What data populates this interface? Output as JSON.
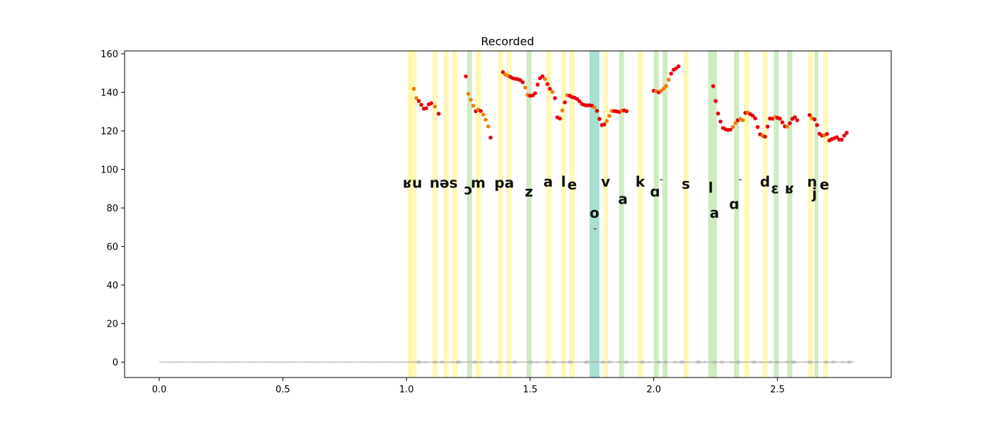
{
  "chart_data": {
    "type": "scatter",
    "title": "Recorded",
    "xlabel": "",
    "ylabel": "",
    "xlim": [
      -0.14,
      2.96
    ],
    "ylim": [
      -8,
      161.5
    ],
    "grid": false,
    "x_ticks": [
      0.0,
      0.5,
      1.0,
      1.5,
      2.0,
      2.5
    ],
    "x_tick_labels": [
      "0.0",
      "0.5",
      "1.0",
      "1.5",
      "2.0",
      "2.5"
    ],
    "y_ticks": [
      0,
      20,
      40,
      60,
      80,
      100,
      120,
      140,
      160
    ],
    "y_tick_labels": [
      "0",
      "20",
      "40",
      "60",
      "80",
      "100",
      "120",
      "140",
      "160"
    ],
    "colors": {
      "pitch_red": "#e8000b",
      "pitch_orange": "#f07d00",
      "band_yellow": "#fff27a",
      "band_green": "#b9e3a8",
      "band_teal": "#3fb69f",
      "waveform": "#b0b0b0",
      "axis": "#000000"
    },
    "series": [
      {
        "points": [
          [
            1.03,
            141.8,
            "o"
          ],
          [
            1.04,
            137,
            "o"
          ],
          [
            1.05,
            135.5,
            "r"
          ],
          [
            1.06,
            133.5,
            "r"
          ],
          [
            1.07,
            131.5,
            "r"
          ],
          [
            1.08,
            131.8,
            "r"
          ],
          [
            1.09,
            133.8,
            "r"
          ],
          [
            1.1,
            134.3,
            "r"
          ],
          [
            1.115,
            132.6,
            "o"
          ],
          [
            1.13,
            128.9,
            "r"
          ],
          [
            1.24,
            148.3,
            "r"
          ],
          [
            1.25,
            139.2,
            "o"
          ],
          [
            1.26,
            136.2,
            "o"
          ],
          [
            1.27,
            133.1,
            "o"
          ],
          [
            1.28,
            130.2,
            "r"
          ],
          [
            1.29,
            131,
            "o"
          ],
          [
            1.3,
            130.3,
            "r"
          ],
          [
            1.31,
            128.4,
            "o"
          ],
          [
            1.32,
            125.8,
            "o"
          ],
          [
            1.33,
            122.3,
            "o"
          ],
          [
            1.34,
            116.5,
            "r"
          ],
          [
            1.39,
            150.5,
            "r"
          ],
          [
            1.4,
            149.2,
            "o"
          ],
          [
            1.41,
            148.6,
            "o"
          ],
          [
            1.42,
            148,
            "r"
          ],
          [
            1.43,
            147.3,
            "r"
          ],
          [
            1.44,
            147,
            "r"
          ],
          [
            1.45,
            146.8,
            "r"
          ],
          [
            1.46,
            146.3,
            "r"
          ],
          [
            1.47,
            145.2,
            "r"
          ],
          [
            1.48,
            142.5,
            "o"
          ],
          [
            1.49,
            138.7,
            "o"
          ],
          [
            1.5,
            138.2,
            "r"
          ],
          [
            1.51,
            138.4,
            "r"
          ],
          [
            1.52,
            139.5,
            "r"
          ],
          [
            1.53,
            144,
            "r"
          ],
          [
            1.54,
            147.3,
            "r"
          ],
          [
            1.55,
            148.3,
            "r"
          ],
          [
            1.56,
            146.9,
            "o"
          ],
          [
            1.57,
            144.3,
            "r"
          ],
          [
            1.58,
            141.8,
            "r"
          ],
          [
            1.59,
            140.2,
            "o"
          ],
          [
            1.6,
            137,
            "r"
          ],
          [
            1.61,
            127,
            "r"
          ],
          [
            1.62,
            126.4,
            "r"
          ],
          [
            1.63,
            130.6,
            "o"
          ],
          [
            1.64,
            134.8,
            "r"
          ],
          [
            1.65,
            138.5,
            "o"
          ],
          [
            1.66,
            138.2,
            "r"
          ],
          [
            1.67,
            137.5,
            "r"
          ],
          [
            1.68,
            137.2,
            "r"
          ],
          [
            1.69,
            136.5,
            "r"
          ],
          [
            1.7,
            135.3,
            "r"
          ],
          [
            1.71,
            133.9,
            "r"
          ],
          [
            1.72,
            133.4,
            "r"
          ],
          [
            1.73,
            133.2,
            "r"
          ],
          [
            1.74,
            133.3,
            "r"
          ],
          [
            1.75,
            133.1,
            "r"
          ],
          [
            1.76,
            132.2,
            "o"
          ],
          [
            1.77,
            130.4,
            "r"
          ],
          [
            1.78,
            126.2,
            "r"
          ],
          [
            1.79,
            123,
            "r"
          ],
          [
            1.8,
            123.3,
            "r"
          ],
          [
            1.81,
            125.1,
            "o"
          ],
          [
            1.82,
            127.8,
            "o"
          ],
          [
            1.83,
            130.3,
            "o"
          ],
          [
            1.84,
            130.3,
            "r"
          ],
          [
            1.85,
            130.1,
            "r"
          ],
          [
            1.86,
            129.8,
            "r"
          ],
          [
            1.87,
            130.5,
            "o"
          ],
          [
            1.88,
            130.6,
            "r"
          ],
          [
            1.89,
            130.2,
            "r"
          ],
          [
            2.0,
            140.8,
            "r"
          ],
          [
            2.01,
            140.5,
            "o"
          ],
          [
            2.02,
            140,
            "r"
          ],
          [
            2.03,
            140.8,
            "o"
          ],
          [
            2.04,
            141.9,
            "o"
          ],
          [
            2.05,
            143.3,
            "o"
          ],
          [
            2.06,
            146.5,
            "o"
          ],
          [
            2.07,
            149.7,
            "r"
          ],
          [
            2.08,
            151.7,
            "r"
          ],
          [
            2.09,
            152.4,
            "r"
          ],
          [
            2.1,
            153.5,
            "r"
          ],
          [
            2.24,
            143.2,
            "r"
          ],
          [
            2.25,
            135.5,
            "r"
          ],
          [
            2.26,
            129,
            "r"
          ],
          [
            2.27,
            124.8,
            "r"
          ],
          [
            2.28,
            121.5,
            "r"
          ],
          [
            2.29,
            120.8,
            "r"
          ],
          [
            2.3,
            120.5,
            "r"
          ],
          [
            2.31,
            120.6,
            "r"
          ],
          [
            2.32,
            122,
            "o"
          ],
          [
            2.33,
            124,
            "o"
          ],
          [
            2.34,
            125.5,
            "r"
          ],
          [
            2.35,
            126.2,
            "o"
          ],
          [
            2.36,
            125.5,
            "o"
          ],
          [
            2.37,
            129.3,
            "r"
          ],
          [
            2.38,
            129.5,
            "o"
          ],
          [
            2.39,
            128.7,
            "r"
          ],
          [
            2.4,
            127.9,
            "r"
          ],
          [
            2.41,
            126.5,
            "r"
          ],
          [
            2.42,
            122,
            "r"
          ],
          [
            2.43,
            118.2,
            "r"
          ],
          [
            2.44,
            117.4,
            "o"
          ],
          [
            2.45,
            117,
            "r"
          ],
          [
            2.46,
            122.2,
            "r"
          ],
          [
            2.47,
            126.4,
            "r"
          ],
          [
            2.48,
            126.3,
            "r"
          ],
          [
            2.49,
            127.2,
            "o"
          ],
          [
            2.5,
            126.8,
            "r"
          ],
          [
            2.51,
            126.3,
            "r"
          ],
          [
            2.52,
            124.4,
            "r"
          ],
          [
            2.53,
            122.3,
            "r"
          ],
          [
            2.54,
            122.2,
            "o"
          ],
          [
            2.55,
            124,
            "r"
          ],
          [
            2.56,
            126.2,
            "r"
          ],
          [
            2.57,
            127.1,
            "r"
          ],
          [
            2.58,
            125.5,
            "r"
          ],
          [
            2.63,
            128.2,
            "r"
          ],
          [
            2.64,
            126.5,
            "o"
          ],
          [
            2.65,
            126,
            "r"
          ],
          [
            2.66,
            123,
            "r"
          ],
          [
            2.67,
            118.5,
            "r"
          ],
          [
            2.68,
            117.5,
            "r"
          ],
          [
            2.69,
            117.7,
            "o"
          ],
          [
            2.7,
            118.4,
            "r"
          ],
          [
            2.71,
            115,
            "r"
          ],
          [
            2.72,
            115.7,
            "r"
          ],
          [
            2.73,
            116.2,
            "r"
          ],
          [
            2.74,
            116.7,
            "r"
          ],
          [
            2.75,
            115.5,
            "r"
          ],
          [
            2.76,
            115.4,
            "r"
          ],
          [
            2.77,
            117.5,
            "r"
          ],
          [
            2.78,
            119,
            "r"
          ]
        ]
      }
    ],
    "bands": [
      [
        1.005,
        1.04,
        "y"
      ],
      [
        1.015,
        1.02,
        "y"
      ],
      [
        1.105,
        1.125,
        "y"
      ],
      [
        1.15,
        1.17,
        "y"
      ],
      [
        1.185,
        1.205,
        "y"
      ],
      [
        1.245,
        1.265,
        "g"
      ],
      [
        1.28,
        1.3,
        "y"
      ],
      [
        1.37,
        1.39,
        "y"
      ],
      [
        1.405,
        1.425,
        "y"
      ],
      [
        1.485,
        1.505,
        "g"
      ],
      [
        1.565,
        1.585,
        "y"
      ],
      [
        1.625,
        1.645,
        "y"
      ],
      [
        1.66,
        1.68,
        "y"
      ],
      [
        1.74,
        1.78,
        "t"
      ],
      [
        1.795,
        1.815,
        "y"
      ],
      [
        1.86,
        1.88,
        "g"
      ],
      [
        1.935,
        1.955,
        "y"
      ],
      [
        2.0,
        2.02,
        "g"
      ],
      [
        2.035,
        2.055,
        "g"
      ],
      [
        2.12,
        2.14,
        "y"
      ],
      [
        2.22,
        2.255,
        "g"
      ],
      [
        2.325,
        2.345,
        "g"
      ],
      [
        2.365,
        2.385,
        "y"
      ],
      [
        2.44,
        2.46,
        "y"
      ],
      [
        2.485,
        2.505,
        "g"
      ],
      [
        2.54,
        2.56,
        "g"
      ],
      [
        2.625,
        2.645,
        "y"
      ],
      [
        2.65,
        2.665,
        "g"
      ],
      [
        2.685,
        2.705,
        "y"
      ]
    ],
    "phonemes": [
      {
        "text": "ʁu",
        "x": 1.025,
        "y": 90.5
      },
      {
        "text": "nəs",
        "x": 1.15,
        "y": 90.5
      },
      {
        "text": "ɔ",
        "x": 1.25,
        "y": 87
      },
      {
        "text": "m",
        "x": 1.29,
        "y": 90.5
      },
      {
        "text": "pa",
        "x": 1.395,
        "y": 90.5
      },
      {
        "text": "z",
        "x": 1.495,
        "y": 86
      },
      {
        "text": "a",
        "x": 1.573,
        "y": 91
      },
      {
        "text": "l",
        "x": 1.635,
        "y": 91
      },
      {
        "text": "e",
        "x": 1.67,
        "y": 89.5
      },
      {
        "text": "o",
        "x": 1.76,
        "y": 75
      },
      {
        "text": "˜",
        "x": 1.763,
        "y": 66
      },
      {
        "text": "v",
        "x": 1.805,
        "y": 91
      },
      {
        "text": "a",
        "x": 1.875,
        "y": 82
      },
      {
        "text": "k",
        "x": 1.945,
        "y": 91
      },
      {
        "text": "ɑ",
        "x": 2.005,
        "y": 86
      },
      {
        "text": "˜",
        "x": 2.03,
        "y": 91.5
      },
      {
        "text": "s",
        "x": 2.13,
        "y": 90
      },
      {
        "text": "l",
        "x": 2.23,
        "y": 88
      },
      {
        "text": "a",
        "x": 2.245,
        "y": 75
      },
      {
        "text": "ɑ",
        "x": 2.325,
        "y": 79.5
      },
      {
        "text": "˜",
        "x": 2.35,
        "y": 91.5
      },
      {
        "text": "d",
        "x": 2.45,
        "y": 91
      },
      {
        "text": "ɛ",
        "x": 2.49,
        "y": 87.5
      },
      {
        "text": "ʁ",
        "x": 2.55,
        "y": 87.5
      },
      {
        "text": "n",
        "x": 2.64,
        "y": 91
      },
      {
        "text": "j",
        "x": 2.65,
        "y": 85
      },
      {
        "text": "e",
        "x": 2.69,
        "y": 89.5
      }
    ],
    "waveform_range": [
      0.0,
      2.81
    ]
  }
}
